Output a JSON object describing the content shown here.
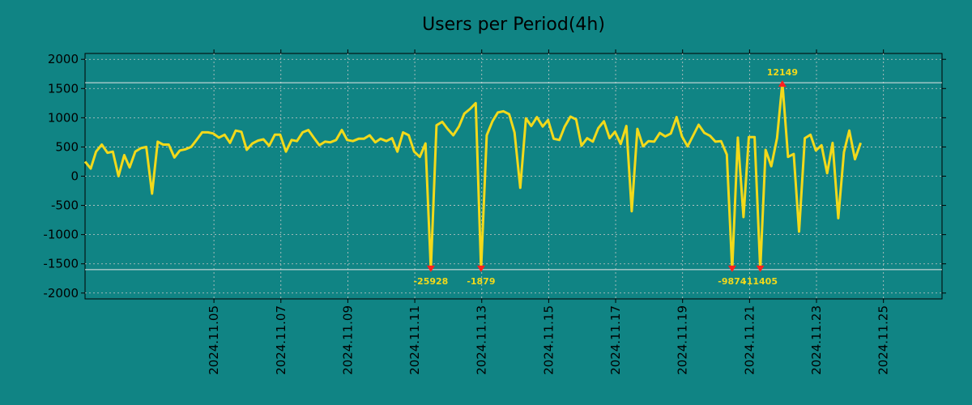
{
  "chart_data": {
    "type": "line",
    "title": "Users per Period(4h)",
    "xlabel": "",
    "ylabel": "",
    "ylim": [
      -2100,
      2100
    ],
    "yticks": [
      2000,
      1500,
      1000,
      500,
      0,
      -500,
      -1000,
      -1500,
      -2000
    ],
    "x_start": 0,
    "x_end": 25.6,
    "xticks": [
      {
        "x": 3.85,
        "label": "2024.11.05"
      },
      {
        "x": 5.85,
        "label": "2024.11.07"
      },
      {
        "x": 7.85,
        "label": "2024.11.09"
      },
      {
        "x": 9.85,
        "label": "2024.11.11"
      },
      {
        "x": 11.85,
        "label": "2024.11.13"
      },
      {
        "x": 13.85,
        "label": "2024.11.15"
      },
      {
        "x": 15.85,
        "label": "2024.11.17"
      },
      {
        "x": 17.85,
        "label": "2024.11.19"
      },
      {
        "x": 19.85,
        "label": "2024.11.21"
      },
      {
        "x": 21.85,
        "label": "2024.11.23"
      },
      {
        "x": 23.85,
        "label": "2024.11.25"
      }
    ],
    "reference_lines": [
      1600,
      -1600
    ],
    "series": [
      {
        "name": "Users",
        "color": "#f2d91a",
        "points": [
          [
            0.0,
            250
          ],
          [
            0.17,
            130
          ],
          [
            0.33,
            420
          ],
          [
            0.5,
            540
          ],
          [
            0.67,
            400
          ],
          [
            0.83,
            420
          ],
          [
            1.0,
            0
          ],
          [
            1.17,
            360
          ],
          [
            1.33,
            150
          ],
          [
            1.5,
            420
          ],
          [
            1.67,
            480
          ],
          [
            1.83,
            500
          ],
          [
            2.0,
            -300
          ],
          [
            2.17,
            590
          ],
          [
            2.33,
            540
          ],
          [
            2.5,
            540
          ],
          [
            2.67,
            320
          ],
          [
            2.83,
            440
          ],
          [
            3.0,
            460
          ],
          [
            3.17,
            500
          ],
          [
            3.33,
            620
          ],
          [
            3.5,
            750
          ],
          [
            3.67,
            750
          ],
          [
            3.83,
            730
          ],
          [
            4.0,
            660
          ],
          [
            4.17,
            710
          ],
          [
            4.33,
            570
          ],
          [
            4.5,
            780
          ],
          [
            4.67,
            760
          ],
          [
            4.83,
            450
          ],
          [
            5.0,
            560
          ],
          [
            5.17,
            610
          ],
          [
            5.33,
            630
          ],
          [
            5.5,
            520
          ],
          [
            5.67,
            710
          ],
          [
            5.83,
            710
          ],
          [
            6.0,
            420
          ],
          [
            6.17,
            620
          ],
          [
            6.33,
            600
          ],
          [
            6.5,
            750
          ],
          [
            6.67,
            790
          ],
          [
            6.83,
            660
          ],
          [
            7.0,
            530
          ],
          [
            7.17,
            590
          ],
          [
            7.33,
            580
          ],
          [
            7.5,
            620
          ],
          [
            7.67,
            790
          ],
          [
            7.83,
            620
          ],
          [
            8.0,
            600
          ],
          [
            8.17,
            640
          ],
          [
            8.33,
            640
          ],
          [
            8.5,
            700
          ],
          [
            8.67,
            580
          ],
          [
            8.83,
            640
          ],
          [
            9.0,
            600
          ],
          [
            9.17,
            650
          ],
          [
            9.33,
            420
          ],
          [
            9.5,
            750
          ],
          [
            9.67,
            700
          ],
          [
            9.83,
            420
          ],
          [
            10.0,
            330
          ],
          [
            10.17,
            560
          ],
          [
            10.33,
            -1600
          ],
          [
            10.5,
            870
          ],
          [
            10.67,
            930
          ],
          [
            10.83,
            810
          ],
          [
            11.0,
            700
          ],
          [
            11.17,
            850
          ],
          [
            11.33,
            1070
          ],
          [
            11.5,
            1150
          ],
          [
            11.67,
            1250
          ],
          [
            11.83,
            -1600
          ],
          [
            12.0,
            700
          ],
          [
            12.17,
            940
          ],
          [
            12.33,
            1090
          ],
          [
            12.5,
            1110
          ],
          [
            12.67,
            1060
          ],
          [
            12.83,
            750
          ],
          [
            13.0,
            -200
          ],
          [
            13.17,
            990
          ],
          [
            13.33,
            860
          ],
          [
            13.5,
            1010
          ],
          [
            13.67,
            850
          ],
          [
            13.83,
            960
          ],
          [
            14.0,
            640
          ],
          [
            14.17,
            620
          ],
          [
            14.33,
            850
          ],
          [
            14.5,
            1020
          ],
          [
            14.67,
            970
          ],
          [
            14.83,
            520
          ],
          [
            15.0,
            650
          ],
          [
            15.17,
            590
          ],
          [
            15.33,
            820
          ],
          [
            15.5,
            940
          ],
          [
            15.67,
            650
          ],
          [
            15.83,
            760
          ],
          [
            16.0,
            550
          ],
          [
            16.17,
            860
          ],
          [
            16.33,
            -600
          ],
          [
            16.5,
            810
          ],
          [
            16.67,
            510
          ],
          [
            16.83,
            600
          ],
          [
            17.0,
            590
          ],
          [
            17.17,
            740
          ],
          [
            17.33,
            680
          ],
          [
            17.5,
            730
          ],
          [
            17.67,
            1010
          ],
          [
            17.83,
            680
          ],
          [
            18.0,
            510
          ],
          [
            18.17,
            700
          ],
          [
            18.33,
            880
          ],
          [
            18.5,
            740
          ],
          [
            18.67,
            690
          ],
          [
            18.83,
            590
          ],
          [
            19.0,
            600
          ],
          [
            19.17,
            370
          ],
          [
            19.33,
            -1600
          ],
          [
            19.5,
            660
          ],
          [
            19.67,
            -700
          ],
          [
            19.83,
            670
          ],
          [
            20.0,
            670
          ],
          [
            20.17,
            -1600
          ],
          [
            20.33,
            450
          ],
          [
            20.5,
            170
          ],
          [
            20.67,
            650
          ],
          [
            20.83,
            1600
          ],
          [
            21.0,
            330
          ],
          [
            21.17,
            380
          ],
          [
            21.33,
            -950
          ],
          [
            21.5,
            650
          ],
          [
            21.67,
            710
          ],
          [
            21.83,
            440
          ],
          [
            22.0,
            530
          ],
          [
            22.17,
            50
          ],
          [
            22.33,
            570
          ],
          [
            22.5,
            -720
          ],
          [
            22.67,
            410
          ],
          [
            22.83,
            780
          ],
          [
            23.0,
            290
          ],
          [
            23.17,
            570
          ]
        ]
      }
    ],
    "annotations": [
      {
        "x": 10.33,
        "y": -1600,
        "label": "-25928",
        "position": "below"
      },
      {
        "x": 11.83,
        "y": -1600,
        "label": "-1879",
        "position": "below"
      },
      {
        "x": 19.33,
        "y": -1600,
        "label": "-9874",
        "position": "below"
      },
      {
        "x": 20.17,
        "y": -1600,
        "label": "-11405",
        "position": "below"
      },
      {
        "x": 20.83,
        "y": 1600,
        "label": "12149",
        "position": "above"
      }
    ]
  }
}
